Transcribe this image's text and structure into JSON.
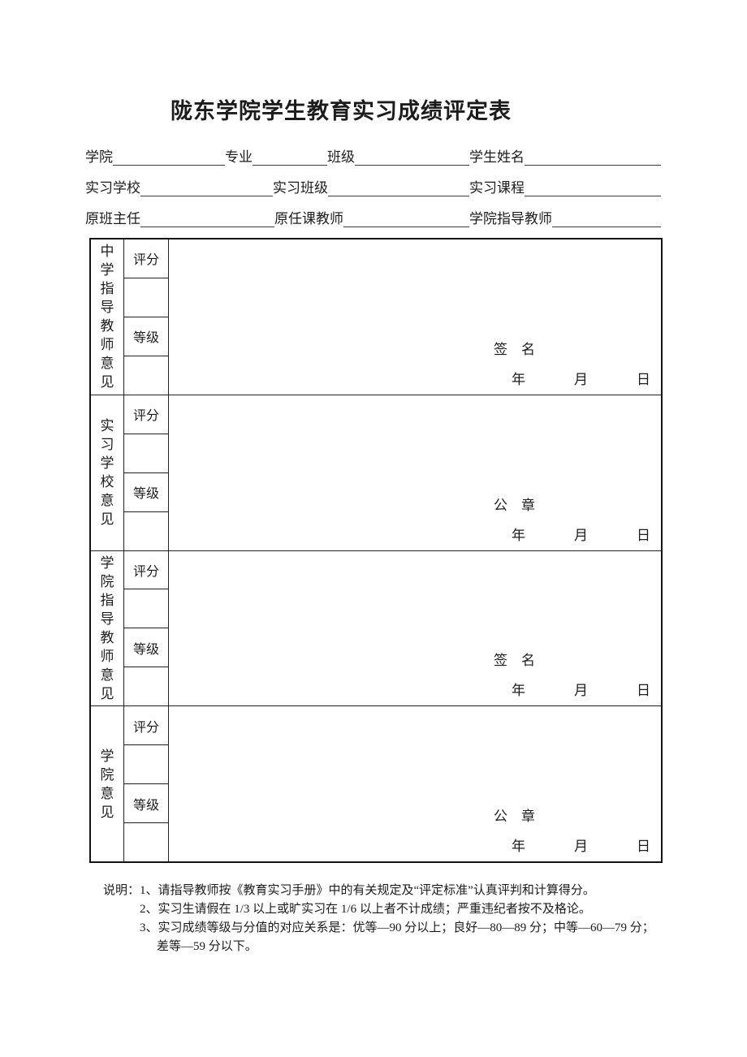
{
  "page_title": "陇东学院学生教育实习成绩评定表",
  "header_form": {
    "row1": {
      "f1": "学院",
      "f2": "专业",
      "f3": "班级",
      "f4": "学生姓名"
    },
    "row2": {
      "f1": "实习学校",
      "f2": "实习班级",
      "f3": "实习课程"
    },
    "row3": {
      "f1": "原班主任",
      "f2": "原任课教师",
      "f3": "学院指导教师"
    }
  },
  "table": {
    "sections": [
      {
        "group_label": "中学指导教师意见",
        "score_label": "评分",
        "grade_label": "等级",
        "sign_label": "签　名",
        "year_label": "年",
        "month_label": "月",
        "day_label": "日"
      },
      {
        "group_label": "实习学校意见",
        "score_label": "评分",
        "grade_label": "等级",
        "sign_label": "公　章",
        "year_label": "年",
        "month_label": "月",
        "day_label": "日"
      },
      {
        "group_label": "学院指导教师意见",
        "score_label": "评分",
        "grade_label": "等级",
        "sign_label": "签　名",
        "year_label": "年",
        "month_label": "月",
        "day_label": "日"
      },
      {
        "group_label": "学院意见",
        "score_label": "评分",
        "grade_label": "等级",
        "sign_label": "公　章",
        "year_label": "年",
        "month_label": "月",
        "day_label": "日"
      }
    ]
  },
  "notes": {
    "prefix": "说明：",
    "items": [
      "1、请指导教师按《教育实习手册》中的有关规定及“评定标准”认真评判和计算得分。",
      "2、实习生请假在 1/3 以上或旷实习在 1/6 以上者不计成绩；严重违纪者按不及格论。",
      "3、实习成绩等级与分值的对应关系是：优等—90 分以上；良好—80—89 分；中等—60—79 分；差等—59 分以下。"
    ]
  }
}
